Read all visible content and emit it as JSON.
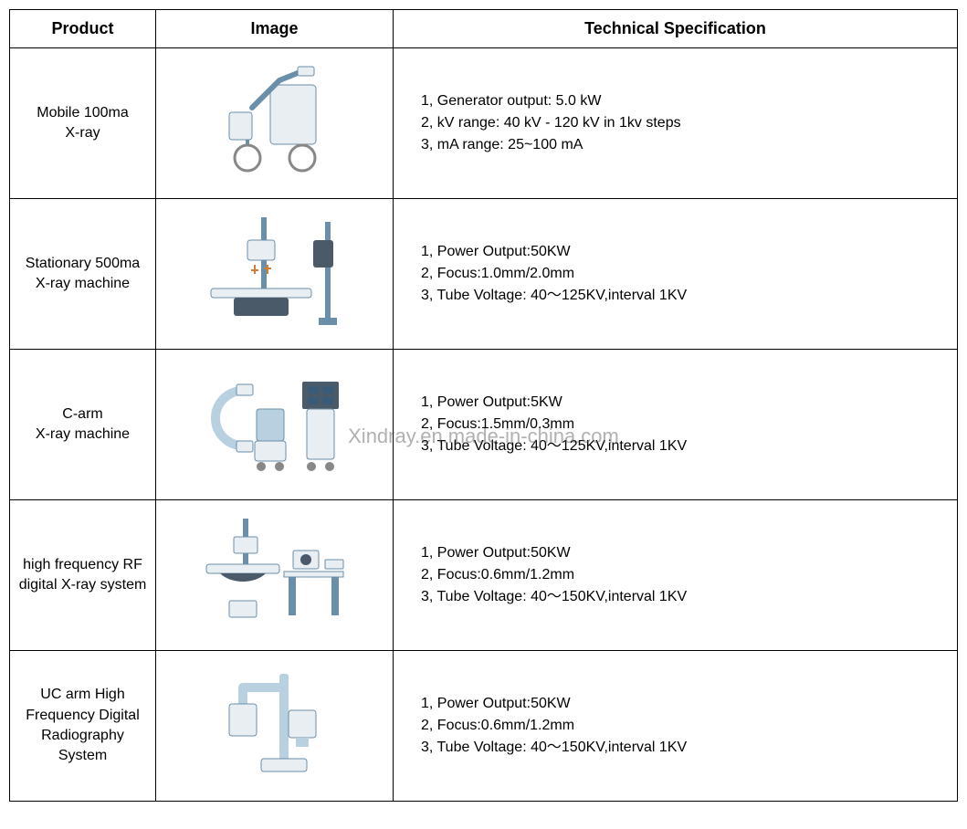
{
  "table": {
    "headers": {
      "product": "Product",
      "image": "Image",
      "spec": "Technical Specification"
    },
    "columns_width": {
      "product": 160,
      "image": 260
    },
    "border_color": "#000000",
    "background_color": "#ffffff",
    "header_fontsize": 18,
    "body_fontsize": 16,
    "rows": [
      {
        "product": "Mobile 100ma\nX-ray",
        "image_name": "mobile-xray-icon",
        "specs": [
          "1, Generator output: 5.0 kW",
          "2, kV range: 40 kV - 120 kV in 1kv steps",
          "3, mA range: 25~100 mA"
        ]
      },
      {
        "product": "Stationary 500ma\nX-ray  machine",
        "image_name": "stationary-xray-icon",
        "specs": [
          "1, Power Output:50KW",
          "2, Focus:1.0mm/2.0mm",
          "3, Tube Voltage: 40～125KV,interval 1KV"
        ]
      },
      {
        "product": "C-arm\nX-ray machine",
        "image_name": "c-arm-xray-icon",
        "specs": [
          "1, Power Output:5KW",
          "2, Focus:1.5mm/0.3mm",
          "3, Tube Voltage: 40～125KV,interval 1KV"
        ]
      },
      {
        "product": "high frequency RF\ndigital X-ray system",
        "image_name": "rf-digital-xray-icon",
        "specs": [
          "1, Power Output:50KW",
          "2, Focus:0.6mm/1.2mm",
          "3, Tube Voltage: 40～150KV,interval 1KV"
        ]
      },
      {
        "product": "UC arm  High\nFrequency Digital\nRadiography System",
        "image_name": "uc-arm-xray-icon",
        "specs": [
          "1, Power Output:50KW",
          "2, Focus:0.6mm/1.2mm",
          "3, Tube Voltage: 40～150KV,interval 1KV"
        ]
      }
    ]
  },
  "watermark": "Xindray.en.made-in-china.com",
  "image_colors": {
    "body_light": "#e8eef2",
    "body_blue": "#b8d0e0",
    "accent": "#6b8fa8",
    "dark": "#4a5a68",
    "wheel": "#888888"
  }
}
